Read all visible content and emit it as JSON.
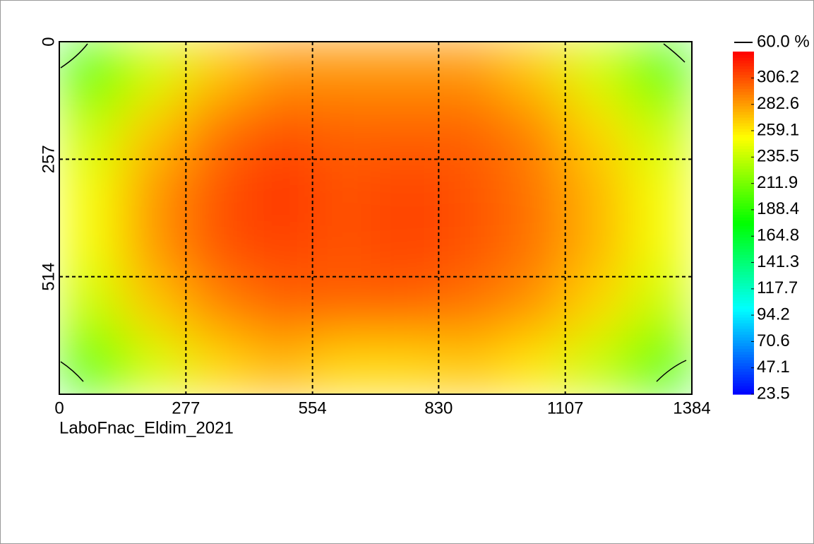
{
  "chart_data": {
    "type": "heatmap",
    "subtitle": "LaboFnac_Eldim_2021",
    "xlim": [
      0,
      1384
    ],
    "xticks": [
      0,
      277,
      554,
      830,
      1107,
      1384
    ],
    "ylim": [
      0,
      771
    ],
    "yticks": [
      0,
      257,
      514
    ],
    "y_inverted": true,
    "grid": true,
    "clim": [
      23.5,
      329.8
    ],
    "cticks": [
      306.2,
      282.6,
      259.1,
      235.5,
      211.9,
      188.4,
      164.8,
      141.3,
      117.7,
      94.2,
      70.6,
      47.1,
      23.5
    ],
    "colormap": [
      "#0000ff",
      "#00ffff",
      "#00ff00",
      "#ffff00",
      "#ff0000"
    ],
    "contour_level": {
      "value": 60,
      "label": "60.0 %"
    },
    "z": [
      [
        195,
        240,
        270,
        285,
        285,
        285,
        285,
        270,
        240,
        195
      ],
      [
        235,
        270,
        295,
        305,
        300,
        300,
        300,
        290,
        265,
        235
      ],
      [
        250,
        285,
        305,
        315,
        305,
        310,
        305,
        295,
        275,
        250
      ],
      [
        250,
        285,
        305,
        310,
        305,
        310,
        305,
        295,
        275,
        250
      ],
      [
        235,
        270,
        290,
        300,
        300,
        300,
        295,
        285,
        265,
        235
      ],
      [
        195,
        240,
        265,
        275,
        265,
        265,
        270,
        260,
        235,
        195
      ]
    ]
  }
}
